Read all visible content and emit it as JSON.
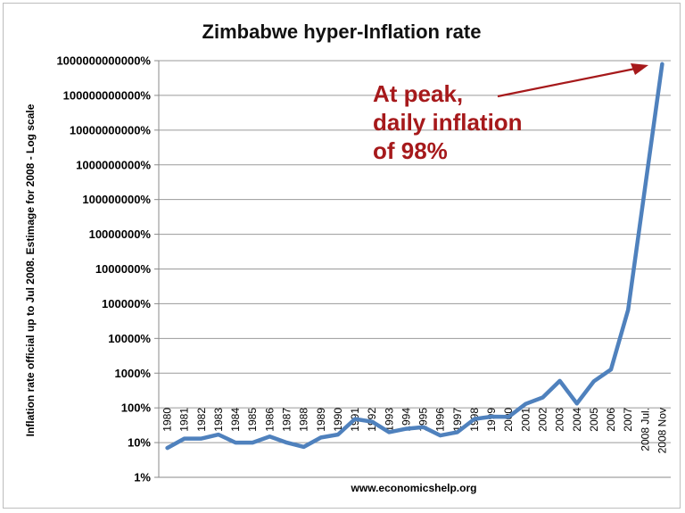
{
  "chart_data": {
    "type": "line",
    "title": "Zimbabwe hyper-Inflation rate",
    "ylabel": "Inflation rate official up to Jul 2008. Estimage for 2008 - Log scale",
    "xlabel": "",
    "source": "www.economicshelp.org",
    "y_scale": "log",
    "ylim": [
      1,
      1000000000000
    ],
    "y_ticks": [
      "1%",
      "10%",
      "100%",
      "1000%",
      "10000%",
      "100000%",
      "1000000%",
      "10000000%",
      "100000000%",
      "1000000000%",
      "10000000000%",
      "100000000000%",
      "1000000000000%"
    ],
    "categories": [
      "1980",
      "1981",
      "1982",
      "1983",
      "1984",
      "1985",
      "1986",
      "1987",
      "1988",
      "1989",
      "1990",
      "1991",
      "1992",
      "1993",
      "1994",
      "1995",
      "1996",
      "1997",
      "1998",
      "1999",
      "2000",
      "2001",
      "2002",
      "2003",
      "2004",
      "2005",
      "2006",
      "2007",
      "2008 Jul.",
      "2008 Nov"
    ],
    "series": [
      {
        "color": "#4f81bd",
        "values": [
          7,
          13,
          13,
          17,
          10,
          10,
          15,
          10,
          7.5,
          14,
          17,
          48,
          40,
          20,
          25,
          28,
          16,
          20,
          48,
          56,
          55,
          130,
          200,
          600,
          133,
          585,
          1281,
          66212,
          231000000,
          800000000000
        ]
      }
    ],
    "annotation": {
      "lines": [
        "At peak,",
        "daily inflation",
        "of 98%"
      ],
      "color": "#a6191b"
    },
    "grid": true,
    "legend": "none"
  }
}
